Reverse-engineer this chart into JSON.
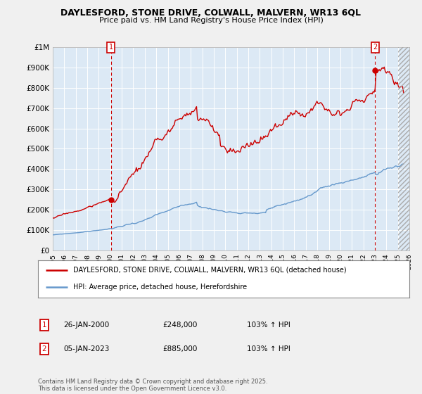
{
  "title": "DAYLESFORD, STONE DRIVE, COLWALL, MALVERN, WR13 6QL",
  "subtitle": "Price paid vs. HM Land Registry's House Price Index (HPI)",
  "legend_line1": "DAYLESFORD, STONE DRIVE, COLWALL, MALVERN, WR13 6QL (detached house)",
  "legend_line2": "HPI: Average price, detached house, Herefordshire",
  "annotation1_date": "26-JAN-2000",
  "annotation1_price": "£248,000",
  "annotation1_hpi": "103% ↑ HPI",
  "annotation1_year": 2000.07,
  "annotation1_value": 248000,
  "annotation2_date": "05-JAN-2023",
  "annotation2_price": "£885,000",
  "annotation2_hpi": "103% ↑ HPI",
  "annotation2_year": 2023.02,
  "annotation2_value": 885000,
  "red_color": "#cc0000",
  "blue_color": "#6699cc",
  "bg_color": "#f0f0f0",
  "plot_bg_color": "#dce9f5",
  "grid_color": "#ffffff",
  "xmin": 1995,
  "xmax": 2026,
  "ymin": 0,
  "ymax": 1000000,
  "footnote": "Contains HM Land Registry data © Crown copyright and database right 2025.\nThis data is licensed under the Open Government Licence v3.0."
}
